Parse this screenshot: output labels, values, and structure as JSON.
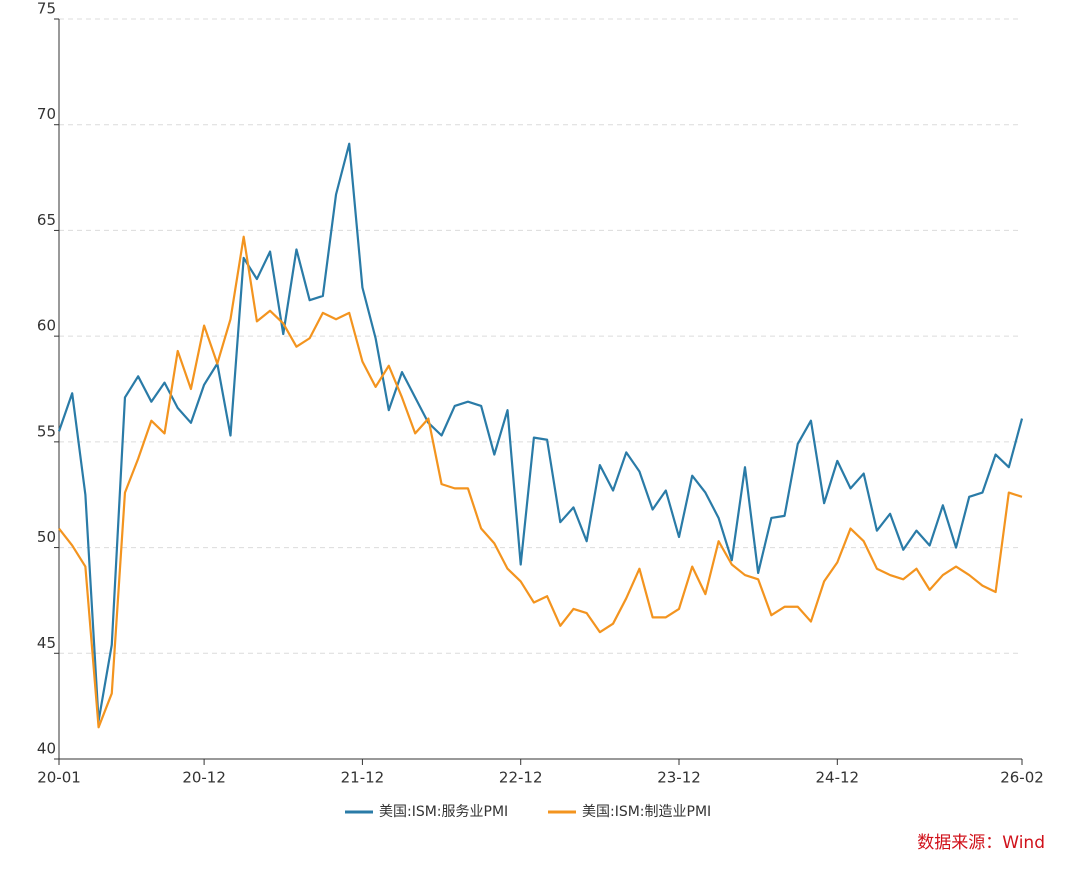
{
  "chart_data": {
    "type": "line",
    "categories": [
      "20-01",
      null,
      null,
      null,
      null,
      null,
      null,
      null,
      null,
      null,
      null,
      "20-12",
      null,
      null,
      null,
      null,
      null,
      null,
      null,
      null,
      null,
      null,
      null,
      "21-12",
      null,
      null,
      null,
      null,
      null,
      null,
      null,
      null,
      null,
      null,
      null,
      "22-12",
      null,
      null,
      null,
      null,
      null,
      null,
      null,
      null,
      null,
      null,
      null,
      "23-12",
      null,
      null,
      null,
      null,
      null,
      null,
      null,
      null,
      null,
      null,
      null,
      "24-12",
      null,
      null,
      null,
      null,
      null,
      null,
      null,
      null,
      null,
      null,
      null,
      null,
      null,
      "26-02"
    ],
    "series": [
      {
        "name": "美国:ISM:服务业PMI",
        "color": "#2a7ba7",
        "values": [
          55.5,
          57.3,
          52.5,
          41.8,
          45.4,
          57.1,
          58.1,
          56.9,
          57.8,
          56.6,
          55.9,
          57.7,
          58.7,
          55.3,
          63.7,
          62.7,
          64.0,
          60.1,
          64.1,
          61.7,
          61.9,
          66.7,
          69.1,
          62.3,
          59.9,
          56.5,
          58.3,
          57.1,
          55.9,
          55.3,
          56.7,
          56.9,
          56.7,
          54.4,
          56.5,
          49.2,
          55.2,
          55.1,
          51.2,
          51.9,
          50.3,
          53.9,
          52.7,
          54.5,
          53.6,
          51.8,
          52.7,
          50.5,
          53.4,
          52.6,
          51.4,
          49.4,
          53.8,
          48.8,
          51.4,
          51.5,
          54.9,
          56.0,
          52.1,
          54.1,
          52.8,
          53.5,
          50.8,
          51.6,
          49.9,
          50.8,
          50.1,
          52.0,
          50.0,
          52.4,
          52.6,
          54.4,
          53.8,
          56.1
        ]
      },
      {
        "name": "美国:ISM:制造业PMI",
        "color": "#f3941f",
        "values": [
          50.9,
          50.1,
          49.1,
          41.5,
          43.1,
          52.6,
          54.2,
          56.0,
          55.4,
          59.3,
          57.5,
          60.5,
          58.7,
          60.8,
          64.7,
          60.7,
          61.2,
          60.6,
          59.5,
          59.9,
          61.1,
          60.8,
          61.1,
          58.8,
          57.6,
          58.6,
          57.1,
          55.4,
          56.1,
          53.0,
          52.8,
          52.8,
          50.9,
          50.2,
          49.0,
          48.4,
          47.4,
          47.7,
          46.3,
          47.1,
          46.9,
          46.0,
          46.4,
          47.6,
          49.0,
          46.7,
          46.7,
          47.1,
          49.1,
          47.8,
          50.3,
          49.2,
          48.7,
          48.5,
          46.8,
          47.2,
          47.2,
          46.5,
          48.4,
          49.3,
          50.9,
          50.3,
          49.0,
          48.7,
          48.5,
          49.0,
          48.0,
          48.7,
          49.1,
          48.7,
          48.2,
          47.9,
          52.6,
          52.4
        ]
      }
    ],
    "ylim": [
      40,
      75
    ],
    "yticks": [
      40,
      45,
      50,
      55,
      60,
      65,
      70,
      75
    ],
    "grid": true,
    "legend": "bottom",
    "source": "数据来源：Wind",
    "source_color": "#d0121b"
  }
}
